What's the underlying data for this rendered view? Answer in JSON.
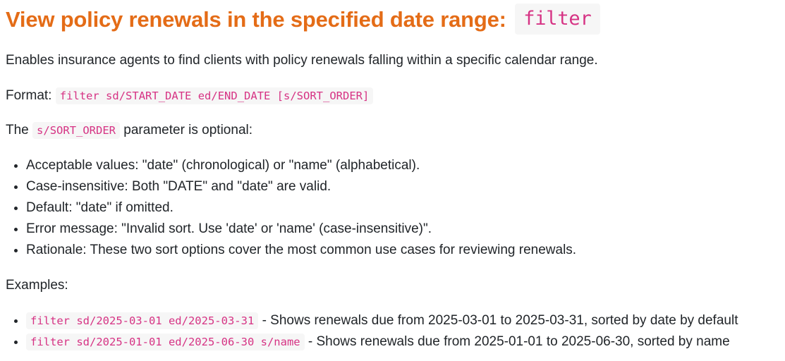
{
  "heading": {
    "text": "View policy renewals in the specified date range:",
    "code": "filter"
  },
  "description": "Enables insurance agents to find clients with policy renewals falling within a specific calendar range.",
  "format": {
    "label": "Format:",
    "code": "filter sd/START_DATE ed/END_DATE [s/SORT_ORDER]"
  },
  "param_note": {
    "prefix": "The",
    "code": "s/SORT_ORDER",
    "suffix": "parameter is optional:"
  },
  "rules": [
    "Acceptable values: \"date\" (chronological) or \"name\" (alphabetical).",
    "Case-insensitive: Both \"DATE\" and \"date\" are valid.",
    "Default: \"date\" if omitted.",
    "Error message: \"Invalid sort. Use 'date' or 'name' (case-insensitive)\".",
    "Rationale: These two sort options cover the most common use cases for reviewing renewals."
  ],
  "examples_label": "Examples:",
  "examples": [
    {
      "code": "filter sd/2025-03-01 ed/2025-03-31",
      "text": "- Shows renewals due from 2025-03-01 to 2025-03-31, sorted by date by default"
    },
    {
      "code": "filter sd/2025-01-01 ed/2025-06-30 s/name",
      "text": "- Shows renewals due from 2025-01-01 to 2025-06-30, sorted by name"
    }
  ]
}
